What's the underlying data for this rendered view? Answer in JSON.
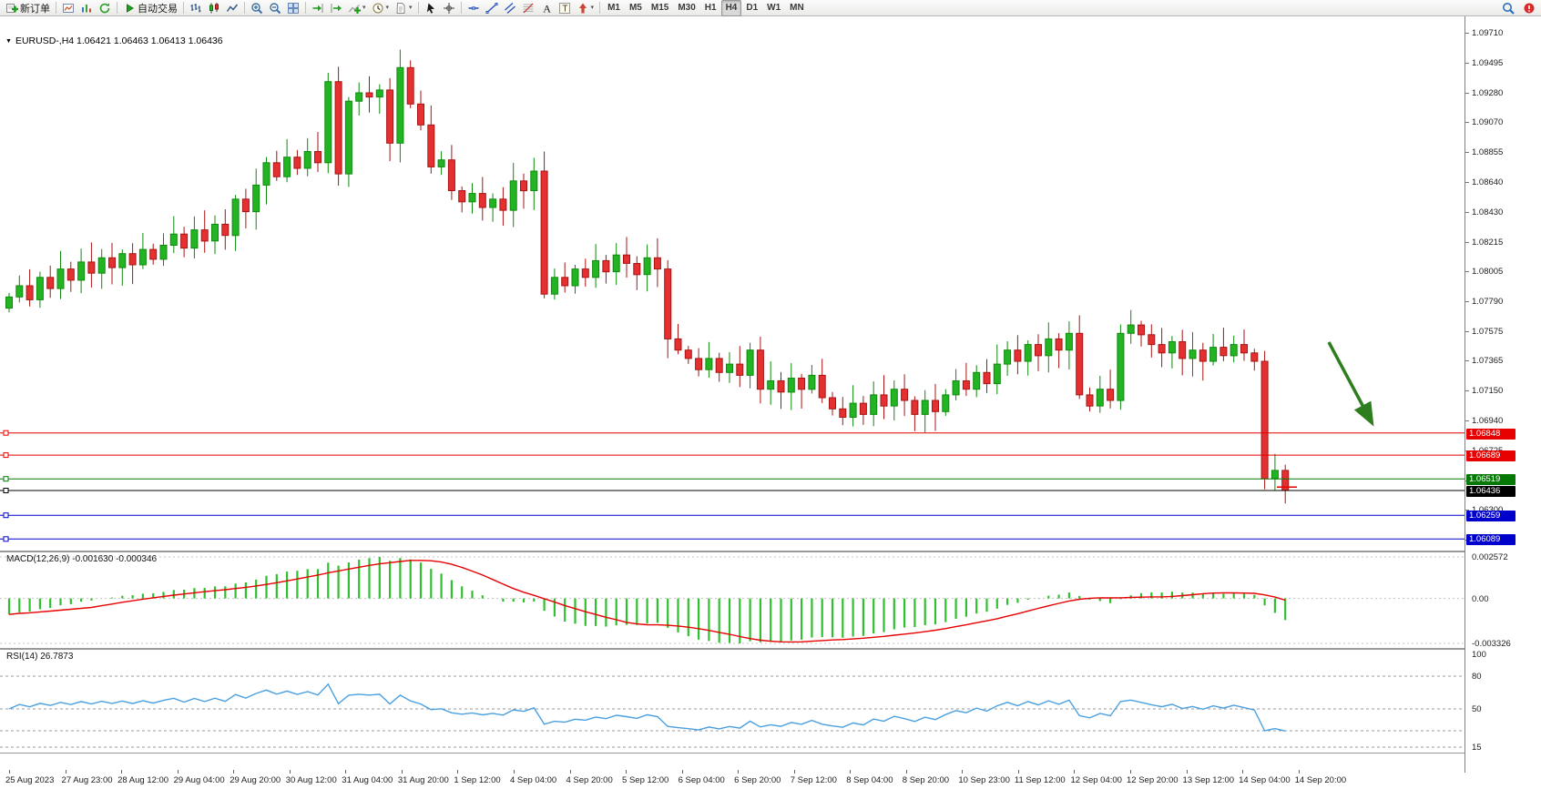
{
  "toolbar": {
    "groups": [
      {
        "items": [
          {
            "name": "new-order-button",
            "icon": "new-order",
            "label": "新订单"
          }
        ]
      },
      {
        "items": [
          {
            "name": "charts-button",
            "icon": "chart-window"
          },
          {
            "name": "data-window-button",
            "icon": "bar-stats"
          },
          {
            "name": "refresh-button",
            "icon": "refresh"
          }
        ]
      },
      {
        "items": [
          {
            "name": "auto-trading-button",
            "icon": "play",
            "label": "自动交易"
          }
        ]
      },
      {
        "items": [
          {
            "name": "bar-chart-button",
            "icon": "bar-chart"
          },
          {
            "name": "candlestick-chart-button",
            "icon": "candle-chart"
          },
          {
            "name": "line-chart-button",
            "icon": "line-chart"
          }
        ]
      },
      {
        "items": [
          {
            "name": "zoom-in-button",
            "icon": "zoom-in"
          },
          {
            "name": "zoom-out-button",
            "icon": "zoom-out"
          },
          {
            "name": "tile-windows-button",
            "icon": "tile-windows"
          }
        ]
      },
      {
        "items": [
          {
            "name": "auto-scroll-button",
            "icon": "auto-scroll"
          },
          {
            "name": "chart-shift-button",
            "icon": "chart-shift"
          },
          {
            "name": "indicators-button",
            "icon": "indicators",
            "caret": true
          },
          {
            "name": "periods-button",
            "icon": "period",
            "caret": true
          },
          {
            "name": "templates-button",
            "icon": "template",
            "caret": true
          }
        ]
      },
      {
        "items": [
          {
            "name": "cursor-button",
            "icon": "cursor"
          },
          {
            "name": "crosshair-button",
            "icon": "crosshair"
          }
        ]
      },
      {
        "items": [
          {
            "name": "horizontal-line-button",
            "icon": "hline"
          },
          {
            "name": "trendline-button",
            "icon": "trendline"
          },
          {
            "name": "channel-button",
            "icon": "channel"
          },
          {
            "name": "fibonacci-button",
            "icon": "fibonacci"
          },
          {
            "name": "text-button",
            "icon": "text-a"
          },
          {
            "name": "label-button",
            "icon": "text-t"
          },
          {
            "name": "arrows-button",
            "icon": "arrows",
            "caret": true
          }
        ]
      }
    ],
    "timeframes": [
      {
        "label": "M1"
      },
      {
        "label": "M5"
      },
      {
        "label": "M15"
      },
      {
        "label": "M30"
      },
      {
        "label": "H1"
      },
      {
        "label": "H4",
        "active": true
      },
      {
        "label": "D1"
      },
      {
        "label": "W1"
      },
      {
        "label": "MN"
      }
    ],
    "right_items": [
      {
        "name": "search-button",
        "icon": "search"
      },
      {
        "name": "alert-button",
        "icon": "alert"
      }
    ]
  },
  "chart": {
    "symbol_header": "EURUSD-,H4 1.06421 1.06463 1.06413 1.06436",
    "dropdown_glyph": "▼",
    "price_axis_labels": [
      "1.09710",
      "1.09495",
      "1.09280",
      "1.09070",
      "1.08855",
      "1.08640",
      "1.08430",
      "1.08215",
      "1.08005",
      "1.07790",
      "1.07575",
      "1.07365",
      "1.07150",
      "1.06940",
      "1.06725",
      "1.06510",
      "1.06300",
      "1.06085"
    ],
    "levels": [
      {
        "price": 1.06848,
        "label": "1.06848",
        "color": "#e60000",
        "kind": "resistance-line"
      },
      {
        "price": 1.06689,
        "label": "1.06689",
        "color": "#e60000",
        "kind": "resistance-line"
      },
      {
        "price": 1.06519,
        "label": "1.06519",
        "color": "#067806",
        "kind": "support-line"
      },
      {
        "price": 1.06436,
        "label": "1.06436",
        "color": "#000000",
        "kind": "current-price-line"
      },
      {
        "price": 1.06259,
        "label": "1.06259",
        "color": "#0000cd",
        "kind": "support-line"
      },
      {
        "price": 1.06089,
        "label": "1.06089",
        "color": "#0000cd",
        "kind": "support-line"
      }
    ],
    "annotation_arrow_color": "#2e7d1e"
  },
  "macd": {
    "label": "MACD(12,26,9) -0.001630 -0.000346",
    "axis_top": "0.002572",
    "axis_zero": "0.00",
    "axis_bottom": "-0.003326"
  },
  "rsi": {
    "label": "RSI(14) 26.7873",
    "axis_labels": [
      {
        "v": 100,
        "t": "100"
      },
      {
        "v": 80,
        "t": "80"
      },
      {
        "v": 50,
        "t": "50"
      },
      {
        "v": 15,
        "t": "15"
      }
    ],
    "level_lines": [
      80,
      50,
      30,
      15
    ]
  },
  "chart_data": {
    "type": "candlestick",
    "title": "EURUSD- H4",
    "ylim": [
      1.06,
      1.0982
    ],
    "current_ohlc": {
      "open": 1.06421,
      "high": 1.06463,
      "low": 1.06413,
      "close": 1.06436
    },
    "closes": [
      1.0782,
      1.079,
      1.078,
      1.0796,
      1.0788,
      1.0802,
      1.0794,
      1.0807,
      1.0799,
      1.081,
      1.0803,
      1.0813,
      1.0805,
      1.0816,
      1.0809,
      1.0819,
      1.0827,
      1.0817,
      1.083,
      1.0822,
      1.0834,
      1.0826,
      1.0852,
      1.0843,
      1.0862,
      1.0878,
      1.0868,
      1.0882,
      1.0874,
      1.0886,
      1.0878,
      1.0936,
      1.087,
      1.0922,
      1.0928,
      1.0925,
      1.093,
      1.0892,
      1.0946,
      1.092,
      1.0905,
      1.0875,
      1.088,
      1.0858,
      1.085,
      1.0856,
      1.0846,
      1.0852,
      1.0844,
      1.0865,
      1.0858,
      1.0872,
      1.0784,
      1.0796,
      1.079,
      1.0802,
      1.0796,
      1.0808,
      1.08,
      1.0812,
      1.0806,
      1.0798,
      1.081,
      1.0802,
      1.0752,
      1.0744,
      1.0738,
      1.073,
      1.0738,
      1.0728,
      1.0734,
      1.0726,
      1.0744,
      1.0716,
      1.0722,
      1.0714,
      1.0724,
      1.0716,
      1.0726,
      1.071,
      1.0702,
      1.0696,
      1.0706,
      1.0698,
      1.0712,
      1.0704,
      1.0716,
      1.0708,
      1.0698,
      1.0708,
      1.07,
      1.0712,
      1.0722,
      1.0716,
      1.0728,
      1.072,
      1.0734,
      1.0744,
      1.0736,
      1.0748,
      1.074,
      1.0752,
      1.0744,
      1.0756,
      1.0712,
      1.0704,
      1.0716,
      1.0708,
      1.0756,
      1.0762,
      1.0755,
      1.0748,
      1.0742,
      1.075,
      1.0738,
      1.0744,
      1.0736,
      1.0746,
      1.074,
      1.0748,
      1.0742,
      1.0736,
      1.0652,
      1.0658,
      1.06436
    ],
    "x_labels": [
      "25 Aug 2023",
      "27 Aug 23:00",
      "28 Aug 12:00",
      "29 Aug 04:00",
      "29 Aug 20:00",
      "30 Aug 12:00",
      "31 Aug 04:00",
      "31 Aug 20:00",
      "1 Sep 12:00",
      "4 Sep 04:00",
      "4 Sep 20:00",
      "5 Sep 12:00",
      "6 Sep 04:00",
      "6 Sep 20:00",
      "7 Sep 12:00",
      "8 Sep 04:00",
      "8 Sep 20:00",
      "10 Sep 23:00",
      "11 Sep 12:00",
      "12 Sep 04:00",
      "12 Sep 20:00",
      "13 Sep 12:00",
      "14 Sep 04:00",
      "14 Sep 20:00"
    ],
    "indicators": {
      "macd": {
        "fast": 12,
        "slow": 26,
        "signal": 9,
        "value": -0.00163,
        "signal_value": -0.000346
      },
      "rsi": {
        "period": 14,
        "value": 26.7873
      }
    }
  },
  "colors": {
    "bull": "#22b422",
    "bear": "#e43030",
    "bull_stroke": "#0e8a0e",
    "bear_stroke": "#a81414",
    "macd_histogram": "#2fbf2f",
    "macd_signal": "#e60000",
    "rsi_line": "#4aa0e0",
    "arrow": "#2e7d1e"
  }
}
